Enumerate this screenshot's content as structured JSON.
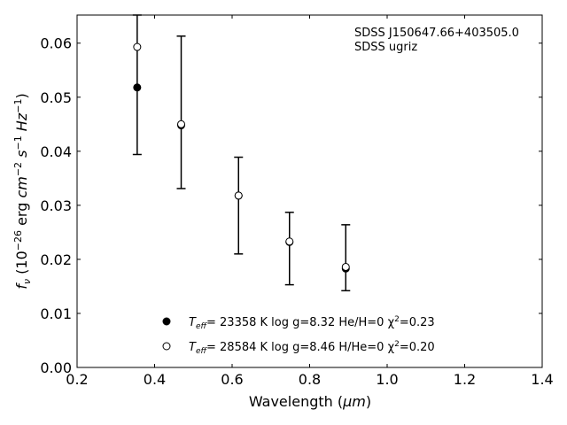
{
  "chart_data": {
    "type": "scatter",
    "title": "",
    "xlabel": "Wavelength (μm)",
    "ylabel": "f_ν (10^−26 erg cm^−2 s^−1 Hz^−1)",
    "xlim": [
      0.2,
      1.4
    ],
    "ylim": [
      0.0,
      0.0652
    ],
    "xticks": [
      0.2,
      0.4,
      0.6,
      0.8,
      1.0,
      1.2,
      1.4
    ],
    "xtick_labels": [
      "0.2",
      "0.4",
      "0.6",
      "0.8",
      "1.0",
      "1.2",
      "1.4"
    ],
    "yticks": [
      0.0,
      0.01,
      0.02,
      0.03,
      0.04,
      0.05,
      0.06
    ],
    "ytick_labels": [
      "0.00",
      "0.01",
      "0.02",
      "0.03",
      "0.04",
      "0.05",
      "0.06"
    ],
    "grid": false,
    "legend_position": "bottom-center",
    "annotations": [
      "SDSS J150647.66+403505.0",
      "SDSS ugriz"
    ],
    "observed": {
      "x": [
        0.3551,
        0.4686,
        0.6166,
        0.748,
        0.8932
      ],
      "y": [
        0.0518,
        0.0448,
        0.0318,
        0.0232,
        0.0202
      ],
      "err_low": [
        0.0394,
        0.0331,
        0.021,
        0.0153,
        0.0142
      ],
      "err_high": [
        0.0652,
        0.0613,
        0.0389,
        0.0287,
        0.0264
      ]
    },
    "series": [
      {
        "marker": "filled",
        "label_parts": [
          "T",
          "eff",
          "= 23358 K  log g=8.32  He/H=0  χ",
          "2",
          "=0.23"
        ],
        "x": [
          0.3551,
          0.4686,
          0.6166,
          0.748,
          0.8932
        ],
        "y": [
          0.0518,
          0.0448,
          0.0318,
          0.0232,
          0.0183
        ]
      },
      {
        "marker": "open",
        "label_parts": [
          "T",
          "eff",
          "= 28584 K  log g=8.46  H/He=0  χ",
          "2",
          "=0.20"
        ],
        "x": [
          0.3551,
          0.4686,
          0.6166,
          0.748,
          0.8932
        ],
        "y": [
          0.0593,
          0.045,
          0.0318,
          0.0233,
          0.0186
        ]
      }
    ]
  },
  "colors": {
    "axes": "#000000",
    "marker_fill": "#000000",
    "open_marker_fill": "#ffffff"
  }
}
